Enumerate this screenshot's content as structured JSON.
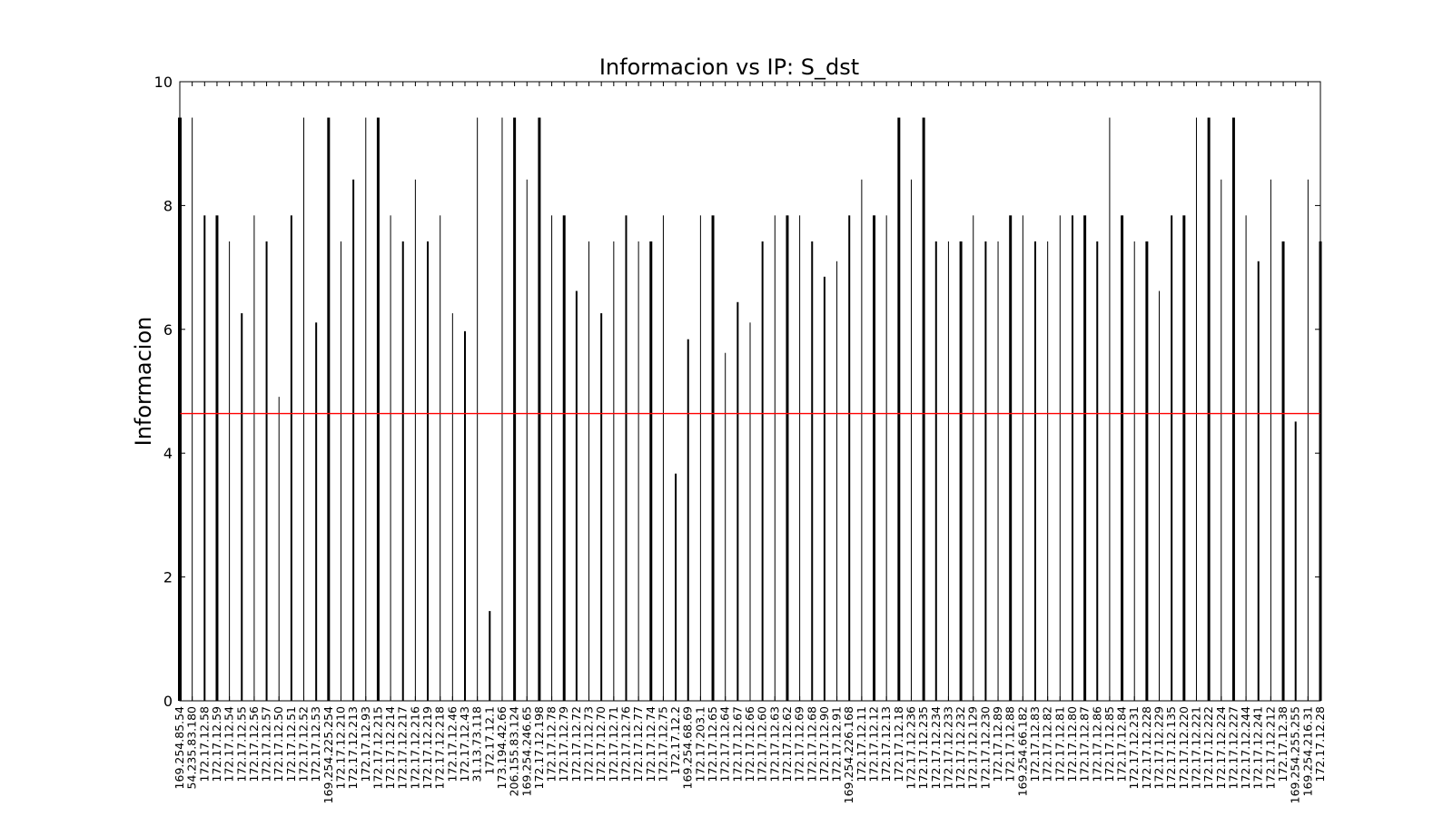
{
  "chart_data": {
    "type": "bar",
    "title": "Informacion vs IP: S_dst",
    "ylabel": "Informacion",
    "xlabel": "",
    "ylim": [
      0,
      10
    ],
    "yticks": [
      "0",
      "2",
      "4",
      "6",
      "8",
      "10"
    ],
    "grid": false,
    "threshold": 4.64,
    "colors": {
      "bars": "#000000",
      "threshold": "#ff0000",
      "axes": "#000000"
    },
    "categories": [
      "169.254.85.54",
      "54.235.83.180",
      "172.17.12.58",
      "172.17.12.59",
      "172.17.12.54",
      "172.17.12.55",
      "172.17.12.56",
      "172.17.12.57",
      "172.17.12.50",
      "172.17.12.51",
      "172.17.12.52",
      "172.17.12.53",
      "169.254.225.254",
      "172.17.12.210",
      "172.17.12.213",
      "172.17.12.93",
      "172.17.12.215",
      "172.17.12.214",
      "172.17.12.217",
      "172.17.12.216",
      "172.17.12.219",
      "172.17.12.218",
      "172.17.12.46",
      "172.17.12.43",
      "31.13.73.118",
      "172.17.12.1",
      "173.194.42.66",
      "206.155.83.124",
      "169.254.246.65",
      "172.17.12.198",
      "172.17.12.78",
      "172.17.12.79",
      "172.17.12.72",
      "172.17.12.73",
      "172.17.12.70",
      "172.17.12.71",
      "172.17.12.76",
      "172.17.12.77",
      "172.17.12.74",
      "172.17.12.75",
      "172.17.12.2",
      "169.254.68.69",
      "172.17.203.1",
      "172.17.12.65",
      "172.17.12.64",
      "172.17.12.67",
      "172.17.12.66",
      "172.17.12.60",
      "172.17.12.63",
      "172.17.12.62",
      "172.17.12.69",
      "172.17.12.68",
      "172.17.12.90",
      "172.17.12.91",
      "169.254.226.168",
      "172.17.12.11",
      "172.17.12.12",
      "172.17.12.13",
      "172.17.12.18",
      "172.17.12.236",
      "172.17.12.235",
      "172.17.12.234",
      "172.17.12.233",
      "172.17.12.232",
      "172.17.12.129",
      "172.17.12.230",
      "172.17.12.89",
      "172.17.12.88",
      "169.254.66.182",
      "172.17.12.83",
      "172.17.12.82",
      "172.17.12.81",
      "172.17.12.80",
      "172.17.12.87",
      "172.17.12.86",
      "172.17.12.85",
      "172.17.12.84",
      "172.17.12.231",
      "172.17.12.228",
      "172.17.12.229",
      "172.17.12.135",
      "172.17.12.220",
      "172.17.12.221",
      "172.17.12.222",
      "172.17.12.224",
      "172.17.12.227",
      "172.17.12.244",
      "172.17.12.241",
      "172.17.12.212",
      "172.17.12.38",
      "169.254.255.255",
      "169.254.216.31",
      "172.17.12.28"
    ],
    "values": [
      9.42,
      9.42,
      7.84,
      7.84,
      7.42,
      6.26,
      7.84,
      7.42,
      4.91,
      7.84,
      9.42,
      6.11,
      9.42,
      7.42,
      8.42,
      9.42,
      9.42,
      7.84,
      7.42,
      8.42,
      7.42,
      7.84,
      6.26,
      5.97,
      9.42,
      1.45,
      9.42,
      9.42,
      8.42,
      9.42,
      7.84,
      7.84,
      6.62,
      7.42,
      6.26,
      7.42,
      7.84,
      7.42,
      7.42,
      7.84,
      3.67,
      5.84,
      7.84,
      7.84,
      5.62,
      6.44,
      6.11,
      7.42,
      7.84,
      7.84,
      7.84,
      7.42,
      6.85,
      7.1,
      7.84,
      8.42,
      7.84,
      7.84,
      9.42,
      8.42,
      9.42,
      7.42,
      7.42,
      7.42,
      7.84,
      7.42,
      7.42,
      7.84,
      7.84,
      7.42,
      7.42,
      7.84,
      7.84,
      7.84,
      7.42,
      9.42,
      7.84,
      7.42,
      7.42,
      6.62,
      7.84,
      7.84,
      9.42,
      9.42,
      8.42,
      9.42,
      7.84,
      7.1,
      8.42,
      7.42,
      4.51,
      8.42,
      7.42
    ],
    "widths": [
      4,
      1,
      2,
      3,
      1,
      2,
      1,
      2,
      1,
      2,
      1,
      2,
      3,
      1,
      2,
      1,
      3,
      1,
      2,
      1,
      2,
      1,
      1,
      2,
      1,
      2,
      1,
      3,
      1,
      3,
      1,
      3,
      2,
      1,
      2,
      1,
      2,
      1,
      3,
      1,
      2,
      2,
      1,
      3,
      1,
      2,
      1,
      2,
      1,
      3,
      1,
      2,
      2,
      1,
      2,
      1,
      3,
      1,
      3,
      1,
      3,
      2,
      1,
      3,
      1,
      2,
      1,
      3,
      1,
      2,
      1,
      1,
      2,
      3,
      2,
      1,
      3,
      1,
      3,
      1,
      2,
      3,
      1,
      3,
      1,
      3,
      1,
      2,
      1,
      3,
      2,
      1,
      3
    ]
  }
}
